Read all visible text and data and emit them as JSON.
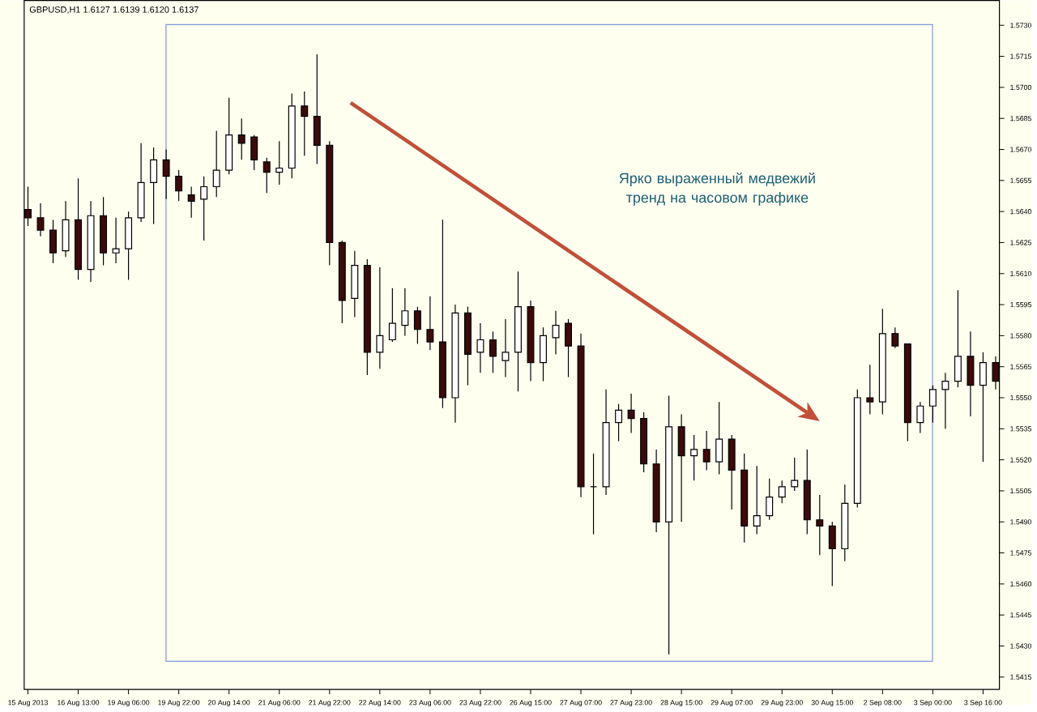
{
  "chart_data": {
    "type": "candlestick",
    "title": "GBPUSD,H1  1.6127 1.6139 1.6120 1.6137",
    "annotations": [
      "Ярко выраженный медвежий тренд на часовом графике"
    ],
    "categories": [
      "15 Aug 2013",
      null,
      null,
      null,
      "16 Aug 13:00",
      null,
      null,
      null,
      "19 Aug 06:00",
      null,
      null,
      null,
      "19 Aug 22:00",
      null,
      null,
      null,
      "20 Aug 14:00",
      null,
      null,
      null,
      "21 Aug 06:00",
      null,
      null,
      null,
      "21 Aug 22:00",
      null,
      null,
      null,
      "22 Aug 14:00",
      null,
      null,
      null,
      "23 Aug 06:00",
      null,
      null,
      null,
      "23 Aug 22:00",
      null,
      null,
      null,
      "26 Aug 15:00",
      null,
      null,
      null,
      "27 Aug 07:00",
      null,
      null,
      null,
      "27 Aug 23:00",
      null,
      null,
      null,
      "28 Aug 15:00",
      null,
      null,
      null,
      "29 Aug 07:00",
      null,
      null,
      null,
      "29 Aug 23:00",
      null,
      null,
      null,
      "30 Aug 15:00",
      null,
      null,
      null,
      "2 Sep 08:00",
      null,
      null,
      null,
      "3 Sep 00:00",
      null,
      null,
      null,
      "3 Sep 16:00",
      null
    ],
    "ohlc": [
      [
        1.5641,
        1.5652,
        1.5633,
        1.5637
      ],
      [
        1.5637,
        1.5644,
        1.5628,
        1.5631
      ],
      [
        1.5631,
        1.5636,
        1.5615,
        1.562
      ],
      [
        1.5621,
        1.5645,
        1.5618,
        1.5636
      ],
      [
        1.5636,
        1.5656,
        1.5607,
        1.5612
      ],
      [
        1.5612,
        1.5645,
        1.5606,
        1.5638
      ],
      [
        1.5638,
        1.5647,
        1.5614,
        1.562
      ],
      [
        1.562,
        1.5637,
        1.5615,
        1.5622
      ],
      [
        1.5622,
        1.564,
        1.5607,
        1.5637
      ],
      [
        1.5637,
        1.5673,
        1.5635,
        1.5654
      ],
      [
        1.5654,
        1.5671,
        1.5634,
        1.5665
      ],
      [
        1.5665,
        1.567,
        1.5646,
        1.5657
      ],
      [
        1.5657,
        1.566,
        1.5645,
        1.565
      ],
      [
        1.5648,
        1.5652,
        1.5637,
        1.5645
      ],
      [
        1.5646,
        1.5657,
        1.5626,
        1.5652
      ],
      [
        1.5652,
        1.5679,
        1.5647,
        1.566
      ],
      [
        1.566,
        1.5695,
        1.5658,
        1.5677
      ],
      [
        1.5677,
        1.5685,
        1.5665,
        1.5673
      ],
      [
        1.5676,
        1.5677,
        1.566,
        1.5665
      ],
      [
        1.5664,
        1.5666,
        1.5649,
        1.5659
      ],
      [
        1.5659,
        1.5674,
        1.5653,
        1.5661
      ],
      [
        1.5661,
        1.5697,
        1.5656,
        1.5691
      ],
      [
        1.5691,
        1.5698,
        1.5667,
        1.5686
      ],
      [
        1.5686,
        1.5716,
        1.5663,
        1.5672
      ],
      [
        1.5672,
        1.5674,
        1.5614,
        1.5625
      ],
      [
        1.5625,
        1.5626,
        1.5586,
        1.5597
      ],
      [
        1.5598,
        1.5621,
        1.5589,
        1.5614
      ],
      [
        1.5614,
        1.5617,
        1.5561,
        1.5572
      ],
      [
        1.5572,
        1.5613,
        1.5564,
        1.558
      ],
      [
        1.5578,
        1.5603,
        1.5577,
        1.5586
      ],
      [
        1.5585,
        1.5603,
        1.558,
        1.5592
      ],
      [
        1.5592,
        1.5594,
        1.5576,
        1.5583
      ],
      [
        1.5583,
        1.5599,
        1.5573,
        1.5577
      ],
      [
        1.5577,
        1.5636,
        1.5545,
        1.555
      ],
      [
        1.555,
        1.5595,
        1.5538,
        1.5591
      ],
      [
        1.5591,
        1.5594,
        1.5556,
        1.5571
      ],
      [
        1.5572,
        1.5586,
        1.5562,
        1.5578
      ],
      [
        1.5578,
        1.5582,
        1.5562,
        1.557
      ],
      [
        1.5568,
        1.5588,
        1.556,
        1.5572
      ],
      [
        1.5572,
        1.5611,
        1.5553,
        1.5594
      ],
      [
        1.5594,
        1.5597,
        1.5558,
        1.5567
      ],
      [
        1.5567,
        1.5584,
        1.5558,
        1.558
      ],
      [
        1.5579,
        1.5592,
        1.5571,
        1.5585
      ],
      [
        1.5586,
        1.5588,
        1.556,
        1.5575
      ],
      [
        1.5575,
        1.5581,
        1.5502,
        1.5507
      ],
      [
        1.5507,
        1.5523,
        1.5484,
        1.5507
      ],
      [
        1.5507,
        1.5554,
        1.5503,
        1.5538
      ],
      [
        1.5538,
        1.5547,
        1.5529,
        1.5544
      ],
      [
        1.5544,
        1.5552,
        1.5533,
        1.554
      ],
      [
        1.554,
        1.5543,
        1.5514,
        1.5518
      ],
      [
        1.5518,
        1.5525,
        1.5485,
        1.549
      ],
      [
        1.549,
        1.5551,
        1.5426,
        1.5536
      ],
      [
        1.5536,
        1.5542,
        1.549,
        1.5522
      ],
      [
        1.5522,
        1.5532,
        1.551,
        1.5525
      ],
      [
        1.5525,
        1.5534,
        1.5515,
        1.5519
      ],
      [
        1.5519,
        1.5548,
        1.5513,
        1.553
      ],
      [
        1.553,
        1.5532,
        1.5496,
        1.5515
      ],
      [
        1.5515,
        1.5523,
        1.548,
        1.5488
      ],
      [
        1.5488,
        1.5517,
        1.5484,
        1.5493
      ],
      [
        1.5493,
        1.5511,
        1.5491,
        1.5502
      ],
      [
        1.5502,
        1.551,
        1.5499,
        1.5507
      ],
      [
        1.5507,
        1.5521,
        1.5505,
        1.551
      ],
      [
        1.551,
        1.5525,
        1.5484,
        1.5491
      ],
      [
        1.5491,
        1.5503,
        1.5474,
        1.5488
      ],
      [
        1.5488,
        1.549,
        1.5459,
        1.5477
      ],
      [
        1.5477,
        1.5508,
        1.5471,
        1.5499
      ],
      [
        1.5499,
        1.5554,
        1.5497,
        1.555
      ],
      [
        1.555,
        1.5566,
        1.5542,
        1.5548
      ],
      [
        1.5548,
        1.5593,
        1.5542,
        1.5581
      ],
      [
        1.5581,
        1.5584,
        1.5574,
        1.5575
      ],
      [
        1.5576,
        1.5576,
        1.5529,
        1.5538
      ],
      [
        1.5538,
        1.5548,
        1.5533,
        1.5546
      ],
      [
        1.5546,
        1.5556,
        1.5538,
        1.5554
      ],
      [
        1.5554,
        1.5562,
        1.5535,
        1.5558
      ],
      [
        1.5558,
        1.5602,
        1.5555,
        1.557
      ],
      [
        1.557,
        1.5582,
        1.5541,
        1.5556
      ],
      [
        1.5556,
        1.5572,
        1.5519,
        1.5567
      ],
      [
        1.5567,
        1.557,
        1.5554,
        1.5558
      ]
    ],
    "ylim": [
      1.5409,
      1.5742
    ],
    "yticks": [
      1.5415,
      {
        "value": 1.543,
        "label": "1.5430"
      },
      1.5445,
      {
        "value": 1.546,
        "label": "1.5460"
      },
      1.5475,
      {
        "value": 1.549,
        "label": "1.5490"
      },
      1.5505,
      {
        "value": 1.552,
        "label": "1.5520"
      },
      1.5535,
      {
        "value": 1.555,
        "label": "1.5550"
      },
      1.5565,
      {
        "value": 1.558,
        "label": "1.5580"
      },
      1.5595,
      {
        "value": 1.561,
        "label": "1.5610"
      },
      1.5625,
      {
        "value": 1.564,
        "label": "1.5640"
      },
      1.5655,
      {
        "value": 1.567,
        "label": "1.5670"
      },
      1.5685,
      {
        "value": 1.57,
        "label": "1.5700"
      },
      1.5715,
      {
        "value": 1.573,
        "label": "1.5730"
      }
    ],
    "grid": false
  }
}
